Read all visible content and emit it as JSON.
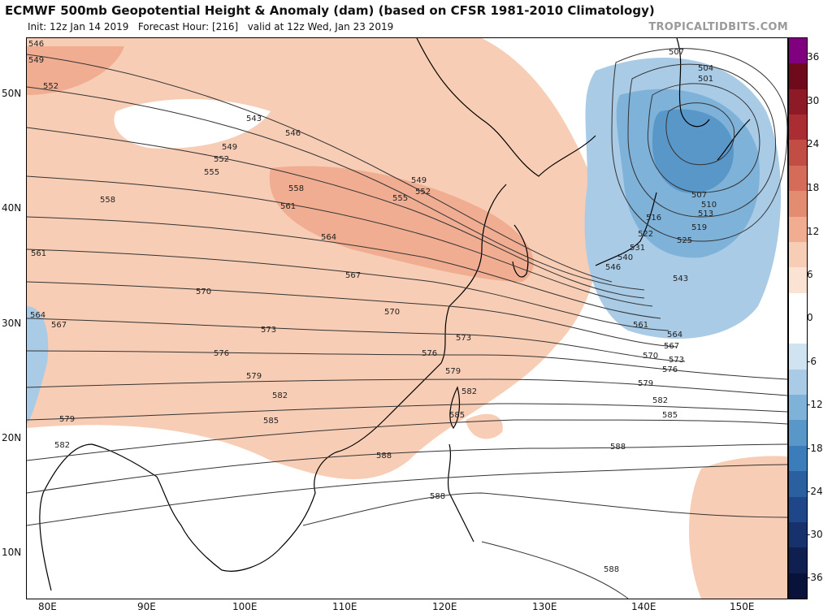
{
  "header": {
    "title": "ECMWF 500mb Geopotential Height & Anomaly (dam) (based on CFSR 1981-2010 Climatology)",
    "init": "Init: 12z Jan 14 2019",
    "forecast_hour": "Forecast Hour: [216]",
    "valid": "valid at 12z Wed, Jan 23 2019",
    "brand": "TROPICALTIDBITS.COM"
  },
  "axes": {
    "lat_labels": [
      "50N",
      "40N",
      "30N",
      "20N",
      "10N"
    ],
    "lon_labels": [
      "80E",
      "90E",
      "100E",
      "110E",
      "120E",
      "130E",
      "140E",
      "150E"
    ]
  },
  "colorbar": {
    "ticks": [
      "36",
      "30",
      "24",
      "18",
      "12",
      "6",
      "0",
      "-6",
      "-12",
      "-18",
      "-24",
      "-30",
      "-36"
    ],
    "colors": [
      "#800080",
      "#6e0a1c",
      "#8d1a26",
      "#aa2d33",
      "#c24d45",
      "#d56c59",
      "#e48c72",
      "#f0ad91",
      "#f8cdb5",
      "#fbe3d3",
      "#ffffff",
      "#ffffff",
      "#cfe3f1",
      "#aacbe6",
      "#7fb2d9",
      "#5a97c9",
      "#3b7dba",
      "#2a60a0",
      "#1f4688",
      "#16316b",
      "#0f2050",
      "#08123a"
    ]
  },
  "contours": [
    {
      "label": "546"
    },
    {
      "label": "549"
    },
    {
      "label": "552"
    },
    {
      "label": "543"
    },
    {
      "label": "555"
    },
    {
      "label": "558"
    },
    {
      "label": "561"
    },
    {
      "label": "564"
    },
    {
      "label": "567"
    },
    {
      "label": "570"
    },
    {
      "label": "573"
    },
    {
      "label": "576"
    },
    {
      "label": "579"
    },
    {
      "label": "582"
    },
    {
      "label": "585"
    },
    {
      "label": "588"
    },
    {
      "label": "507"
    },
    {
      "label": "504"
    },
    {
      "label": "501"
    },
    {
      "label": "510"
    },
    {
      "label": "513"
    },
    {
      "label": "516"
    },
    {
      "label": "519"
    },
    {
      "label": "522"
    },
    {
      "label": "525"
    },
    {
      "label": "531"
    },
    {
      "label": "540"
    }
  ]
}
